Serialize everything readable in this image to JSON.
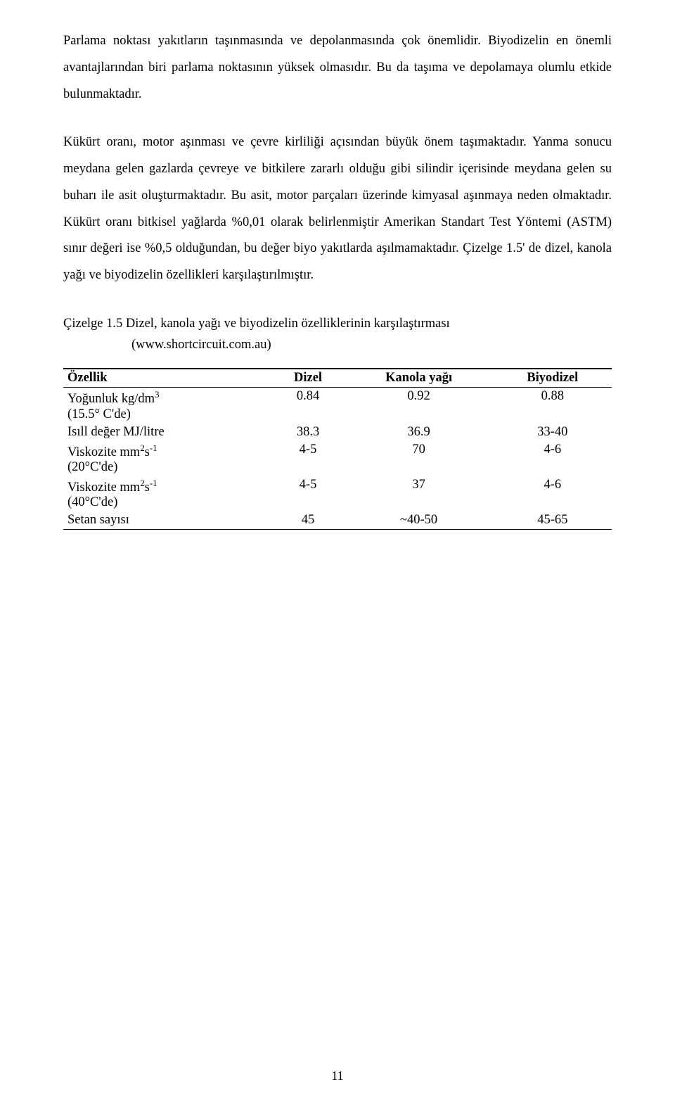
{
  "paragraphs": {
    "p1": "Parlama noktası yakıtların taşınmasında ve depolanmasında çok önemlidir. Biyodizelin en önemli avantajlarından biri parlama noktasının yüksek olmasıdır. Bu da taşıma ve depolamaya olumlu etkide bulunmaktadır.",
    "p2": "Kükürt oranı, motor aşınması ve çevre kirliliği açısından büyük önem taşımaktadır. Yanma sonucu meydana gelen gazlarda çevreye ve bitkilere zararlı olduğu gibi silindir içerisinde meydana gelen su buharı ile asit oluşturmaktadır. Bu asit, motor parçaları üzerinde kimyasal aşınmaya neden olmaktadır. Kükürt oranı bitkisel yağlarda %0,01 olarak belirlenmiştir Amerikan Standart Test Yöntemi (ASTM) sınır değeri ise %0,5 olduğundan, bu değer biyo yakıtlarda aşılmamaktadır. Çizelge 1.5' de dizel, kanola yağı ve biyodizelin özellikleri karşılaştırılmıştır."
  },
  "table": {
    "caption_line1": "Çizelge 1.5  Dizel, kanola yağı ve biyodizelin özelliklerinin karşılaştırması",
    "caption_line2": "(www.shortcircuit.com.au)",
    "headers": {
      "c0": "Özellik",
      "c1": "Dizel",
      "c2": "Kanola yağı",
      "c3": "Biyodizel"
    },
    "rows": {
      "r0": {
        "sup": "3",
        "label_pre": "Yoğunluk kg/dm",
        "label_post": " (15.5° C'de)",
        "v1": "0.84",
        "v2": "0.92",
        "v3": "0.88"
      },
      "r1": {
        "label": "Isıll değer MJ/litre",
        "v1": "38.3",
        "v2": "36.9",
        "v3": "33-40"
      },
      "r2": {
        "sup": "2",
        "sup2": "-1",
        "label_pre": "Viskozite mm",
        "label_mid": "s",
        "label_post": " (20°C'de)",
        "v1": "4-5",
        "v2": "70",
        "v3": "4-6"
      },
      "r3": {
        "sup": "2",
        "sup2": "-1",
        "label_pre": "Viskozite mm",
        "label_mid": "s",
        "label_post": " (40°C'de)",
        "v1": "4-5",
        "v2": "37",
        "v3": "4-6"
      },
      "r4": {
        "label": "Setan sayısı",
        "v1": "45",
        "v2": "~40-50",
        "v3": "45-65"
      }
    }
  },
  "page_number": "11"
}
